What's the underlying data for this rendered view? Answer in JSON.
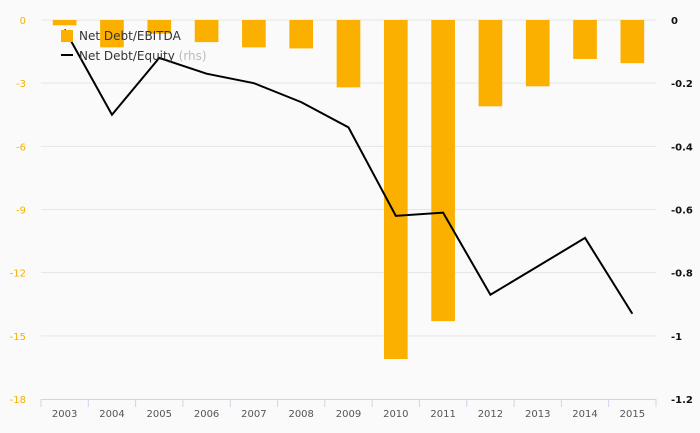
{
  "chart_data": {
    "type": "bar",
    "title": "",
    "categories": [
      "2003",
      "2004",
      "2005",
      "2006",
      "2007",
      "2008",
      "2009",
      "2010",
      "2011",
      "2012",
      "2013",
      "2014",
      "2015"
    ],
    "series": [
      {
        "name": "Net Debt/EBITDA",
        "type": "bar",
        "axis": "left",
        "color": "#fbb000",
        "values": [
          -0.25,
          -1.3,
          -0.65,
          -1.05,
          -1.3,
          -1.35,
          -3.2,
          -16.1,
          -14.3,
          -4.1,
          -3.15,
          -1.85,
          -2.05
        ]
      },
      {
        "name": "Net Debt/Equity",
        "name_suffix": "(rhs)",
        "type": "line",
        "axis": "right",
        "color": "#000000",
        "values": [
          -0.03,
          -0.3,
          -0.12,
          -0.17,
          -0.2,
          -0.26,
          -0.34,
          -0.62,
          -0.61,
          -0.87,
          -0.78,
          -0.69,
          -0.93
        ]
      }
    ],
    "y_left": {
      "range": [
        -18,
        0
      ],
      "ticks": [
        "0",
        "-3",
        "-6",
        "-9",
        "-12",
        "-15",
        "-18"
      ],
      "tick_values": [
        0,
        -3,
        -6,
        -9,
        -12,
        -15,
        -18
      ]
    },
    "y_right": {
      "range": [
        -1.2,
        0
      ],
      "ticks": [
        "0",
        "-0.2",
        "-0.4",
        "-0.6",
        "-0.8",
        "-1",
        "-1.2"
      ],
      "tick_values": [
        0,
        -0.2,
        -0.4,
        -0.6,
        -0.8,
        -1,
        -1.2
      ]
    },
    "grid": true,
    "legend": "top-left"
  }
}
